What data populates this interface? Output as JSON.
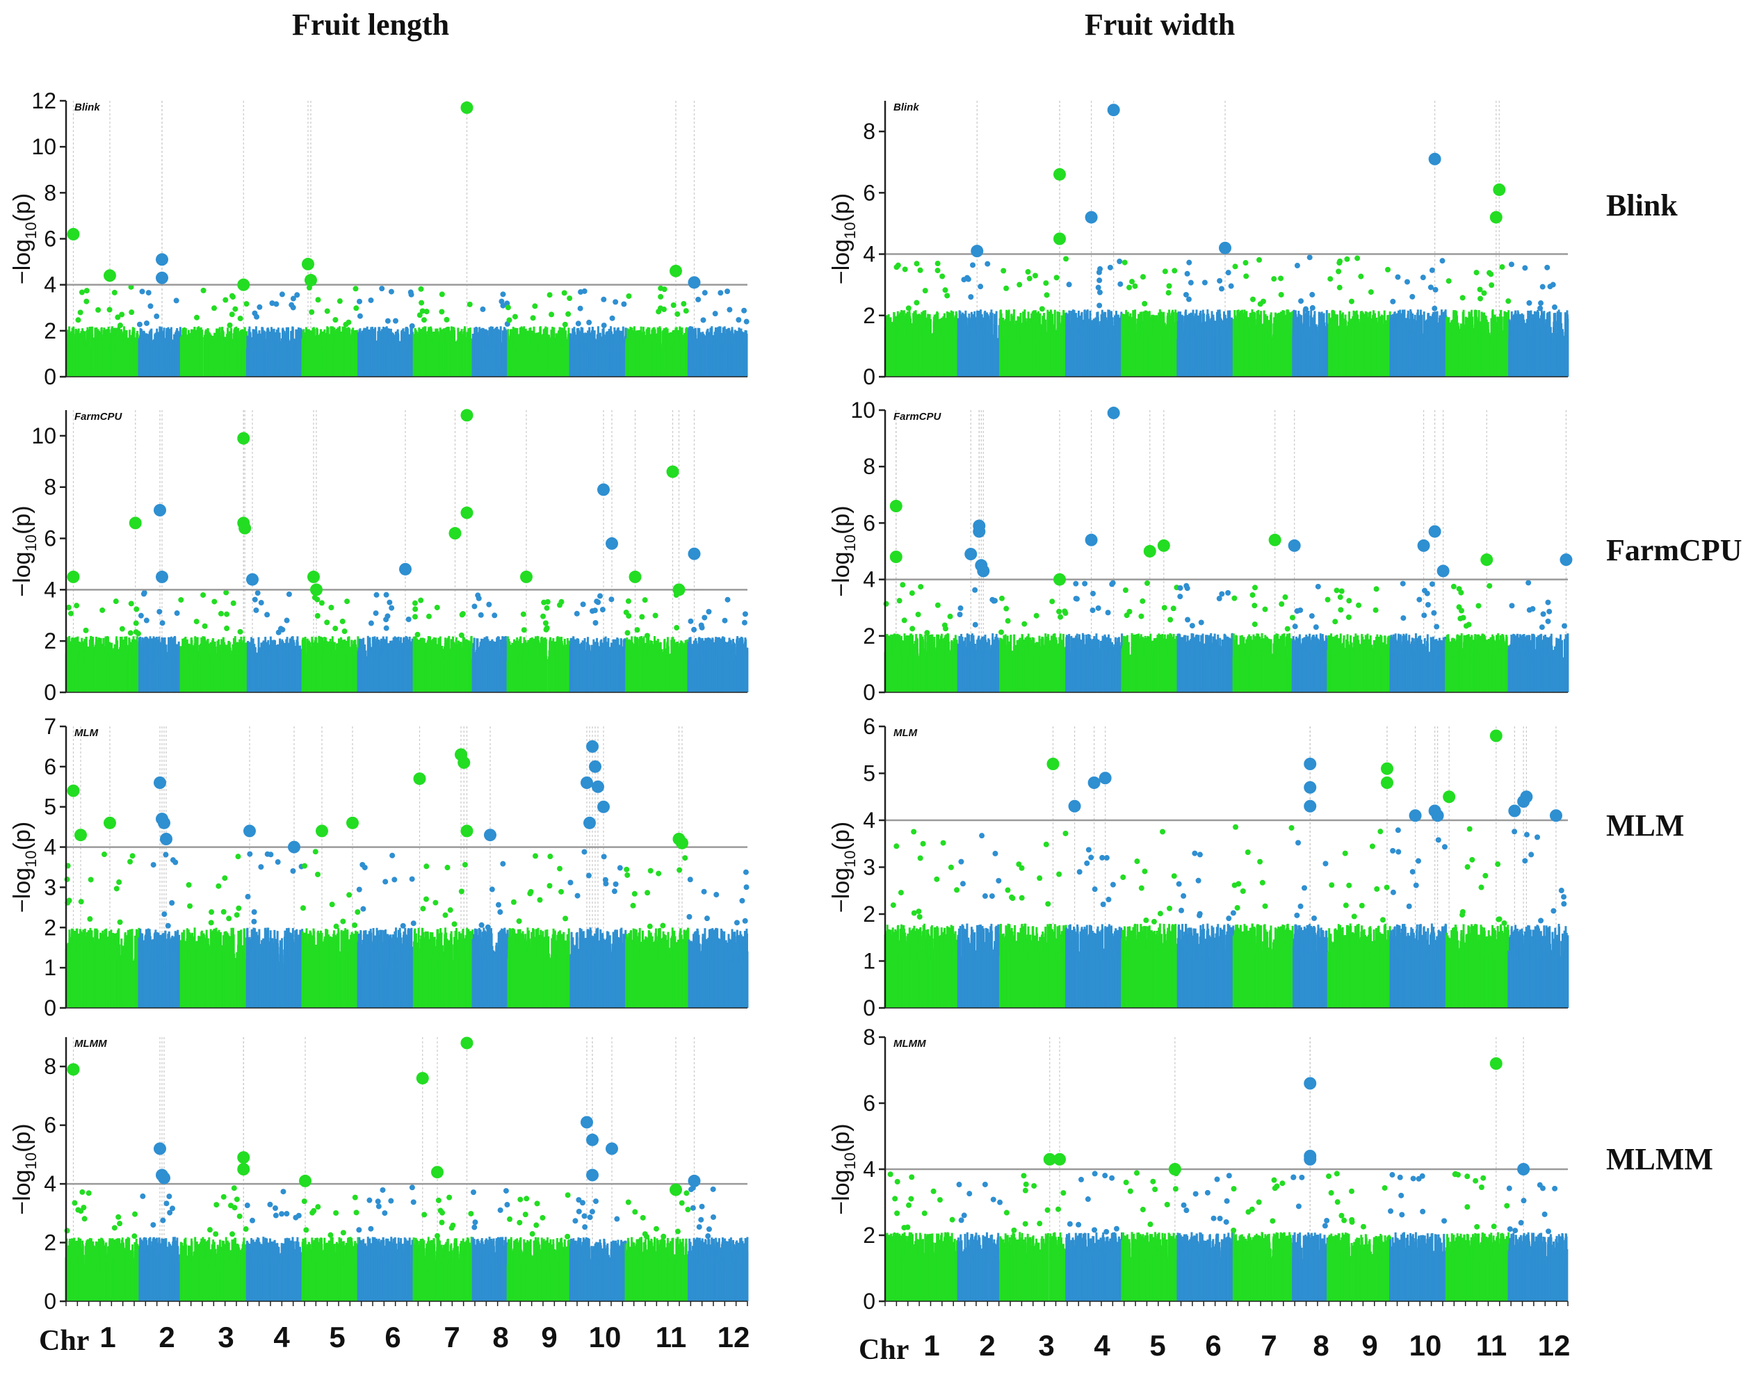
{
  "columns": [
    {
      "title": "Fruit length"
    },
    {
      "title": "Fruit width"
    }
  ],
  "row_labels": [
    "Blink",
    "FarmCPU",
    "MLM",
    "MLMM"
  ],
  "y_axis_label": {
    "main": "−log",
    "sub": "10",
    "tail": "(p)"
  },
  "x_axis": {
    "left": {
      "prefix": "Chr",
      "chromosomes": [
        "1",
        "2",
        "3",
        "4",
        "5",
        "6",
        "7",
        "8",
        "9",
        "10",
        "11",
        "12"
      ]
    },
    "right": {
      "prefix": "Chr",
      "chromosomes": [
        "1",
        "2",
        "3",
        "4",
        "5",
        "6",
        "7",
        "8",
        "9",
        "10",
        "11",
        "12"
      ]
    }
  },
  "colors": {
    "green": "#22dd22",
    "blue": "#2e8fd1",
    "threshold": "#9a9a9a",
    "grid": "#c8c8c8"
  },
  "chart_data": [
    {
      "type": "scatter",
      "trait": "Fruit length",
      "model": "Blink",
      "ylim": [
        0,
        12
      ],
      "yticks": [
        0,
        2,
        4,
        6,
        8,
        10,
        12
      ],
      "threshold": 4,
      "baseline": 2.2,
      "significant_points": [
        {
          "chr": 1,
          "pos": 0.1,
          "y": 6.2
        },
        {
          "chr": 1,
          "pos": 0.6,
          "y": 4.4
        },
        {
          "chr": 2,
          "pos": 0.55,
          "y": 5.1
        },
        {
          "chr": 2,
          "pos": 0.55,
          "y": 4.3
        },
        {
          "chr": 3,
          "pos": 0.95,
          "y": 4.0
        },
        {
          "chr": 5,
          "pos": 0.1,
          "y": 4.9
        },
        {
          "chr": 5,
          "pos": 0.15,
          "y": 4.2
        },
        {
          "chr": 7,
          "pos": 0.9,
          "y": 11.7
        },
        {
          "chr": 11,
          "pos": 0.8,
          "y": 4.6
        },
        {
          "chr": 12,
          "pos": 0.1,
          "y": 4.1
        }
      ]
    },
    {
      "type": "scatter",
      "trait": "Fruit length",
      "model": "FarmCPU",
      "ylim": [
        0,
        11
      ],
      "yticks": [
        0,
        2,
        4,
        6,
        8,
        10
      ],
      "threshold": 4,
      "baseline": 2.2,
      "significant_points": [
        {
          "chr": 1,
          "pos": 0.1,
          "y": 4.5
        },
        {
          "chr": 1,
          "pos": 0.95,
          "y": 6.6
        },
        {
          "chr": 2,
          "pos": 0.5,
          "y": 7.1
        },
        {
          "chr": 2,
          "pos": 0.55,
          "y": 4.5
        },
        {
          "chr": 3,
          "pos": 0.95,
          "y": 9.9
        },
        {
          "chr": 3,
          "pos": 0.95,
          "y": 6.6
        },
        {
          "chr": 3,
          "pos": 0.97,
          "y": 6.4
        },
        {
          "chr": 4,
          "pos": 0.1,
          "y": 4.4
        },
        {
          "chr": 5,
          "pos": 0.2,
          "y": 4.5
        },
        {
          "chr": 5,
          "pos": 0.25,
          "y": 4.0
        },
        {
          "chr": 6,
          "pos": 0.85,
          "y": 4.8
        },
        {
          "chr": 7,
          "pos": 0.7,
          "y": 6.2
        },
        {
          "chr": 7,
          "pos": 0.9,
          "y": 10.8
        },
        {
          "chr": 7,
          "pos": 0.9,
          "y": 7.0
        },
        {
          "chr": 9,
          "pos": 0.3,
          "y": 4.5
        },
        {
          "chr": 10,
          "pos": 0.6,
          "y": 7.9
        },
        {
          "chr": 10,
          "pos": 0.75,
          "y": 5.8
        },
        {
          "chr": 11,
          "pos": 0.15,
          "y": 4.5
        },
        {
          "chr": 11,
          "pos": 0.75,
          "y": 8.6
        },
        {
          "chr": 11,
          "pos": 0.85,
          "y": 4.0
        },
        {
          "chr": 12,
          "pos": 0.1,
          "y": 5.4
        }
      ]
    },
    {
      "type": "scatter",
      "trait": "Fruit length",
      "model": "MLM",
      "ylim": [
        0,
        7
      ],
      "yticks": [
        0,
        1,
        2,
        3,
        4,
        5,
        6,
        7
      ],
      "threshold": 4,
      "baseline": 2.0,
      "significant_points": [
        {
          "chr": 1,
          "pos": 0.1,
          "y": 5.4
        },
        {
          "chr": 1,
          "pos": 0.2,
          "y": 4.3
        },
        {
          "chr": 1,
          "pos": 0.6,
          "y": 4.6
        },
        {
          "chr": 2,
          "pos": 0.5,
          "y": 5.6
        },
        {
          "chr": 2,
          "pos": 0.55,
          "y": 4.7
        },
        {
          "chr": 2,
          "pos": 0.6,
          "y": 4.6
        },
        {
          "chr": 2,
          "pos": 0.65,
          "y": 4.2
        },
        {
          "chr": 4,
          "pos": 0.05,
          "y": 4.4
        },
        {
          "chr": 4,
          "pos": 0.85,
          "y": 4.0
        },
        {
          "chr": 5,
          "pos": 0.35,
          "y": 4.4
        },
        {
          "chr": 5,
          "pos": 0.9,
          "y": 4.6
        },
        {
          "chr": 7,
          "pos": 0.1,
          "y": 5.7
        },
        {
          "chr": 7,
          "pos": 0.8,
          "y": 6.3
        },
        {
          "chr": 7,
          "pos": 0.85,
          "y": 6.1
        },
        {
          "chr": 7,
          "pos": 0.9,
          "y": 4.4
        },
        {
          "chr": 8,
          "pos": 0.5,
          "y": 4.3
        },
        {
          "chr": 10,
          "pos": 0.3,
          "y": 5.6
        },
        {
          "chr": 10,
          "pos": 0.4,
          "y": 6.5
        },
        {
          "chr": 10,
          "pos": 0.45,
          "y": 6.0
        },
        {
          "chr": 10,
          "pos": 0.5,
          "y": 5.5
        },
        {
          "chr": 10,
          "pos": 0.6,
          "y": 5.0
        },
        {
          "chr": 10,
          "pos": 0.35,
          "y": 4.6
        },
        {
          "chr": 11,
          "pos": 0.85,
          "y": 4.2
        },
        {
          "chr": 11,
          "pos": 0.9,
          "y": 4.1
        }
      ]
    },
    {
      "type": "scatter",
      "trait": "Fruit length",
      "model": "MLMM",
      "ylim": [
        0,
        9
      ],
      "yticks": [
        0,
        2,
        4,
        6,
        8
      ],
      "threshold": 4,
      "baseline": 2.2,
      "significant_points": [
        {
          "chr": 1,
          "pos": 0.1,
          "y": 7.9
        },
        {
          "chr": 2,
          "pos": 0.5,
          "y": 5.2
        },
        {
          "chr": 2,
          "pos": 0.55,
          "y": 4.3
        },
        {
          "chr": 2,
          "pos": 0.6,
          "y": 4.2
        },
        {
          "chr": 3,
          "pos": 0.95,
          "y": 4.9
        },
        {
          "chr": 3,
          "pos": 0.95,
          "y": 4.5
        },
        {
          "chr": 5,
          "pos": 0.05,
          "y": 4.1
        },
        {
          "chr": 7,
          "pos": 0.15,
          "y": 7.6
        },
        {
          "chr": 7,
          "pos": 0.4,
          "y": 4.4
        },
        {
          "chr": 7,
          "pos": 0.9,
          "y": 8.8
        },
        {
          "chr": 10,
          "pos": 0.3,
          "y": 6.1
        },
        {
          "chr": 10,
          "pos": 0.4,
          "y": 5.5
        },
        {
          "chr": 10,
          "pos": 0.4,
          "y": 4.3
        },
        {
          "chr": 10,
          "pos": 0.75,
          "y": 5.2
        },
        {
          "chr": 11,
          "pos": 0.8,
          "y": 3.8
        },
        {
          "chr": 12,
          "pos": 0.1,
          "y": 4.1
        }
      ]
    },
    {
      "type": "scatter",
      "trait": "Fruit width",
      "model": "Blink",
      "ylim": [
        0,
        9
      ],
      "yticks": [
        0,
        2,
        4,
        6,
        8
      ],
      "threshold": 4,
      "baseline": 2.2,
      "significant_points": [
        {
          "chr": 2,
          "pos": 0.45,
          "y": 4.1
        },
        {
          "chr": 3,
          "pos": 0.9,
          "y": 6.6
        },
        {
          "chr": 3,
          "pos": 0.9,
          "y": 4.5
        },
        {
          "chr": 4,
          "pos": 0.45,
          "y": 5.2
        },
        {
          "chr": 4,
          "pos": 0.85,
          "y": 8.7
        },
        {
          "chr": 6,
          "pos": 0.85,
          "y": 4.2
        },
        {
          "chr": 10,
          "pos": 0.8,
          "y": 7.1
        },
        {
          "chr": 11,
          "pos": 0.85,
          "y": 6.1
        },
        {
          "chr": 11,
          "pos": 0.8,
          "y": 5.2
        }
      ]
    },
    {
      "type": "scatter",
      "trait": "Fruit width",
      "model": "FarmCPU",
      "ylim": [
        0,
        10
      ],
      "yticks": [
        0,
        2,
        4,
        6,
        8,
        10
      ],
      "threshold": 4,
      "baseline": 2.1,
      "significant_points": [
        {
          "chr": 1,
          "pos": 0.15,
          "y": 6.6
        },
        {
          "chr": 1,
          "pos": 0.15,
          "y": 4.8
        },
        {
          "chr": 2,
          "pos": 0.3,
          "y": 4.9
        },
        {
          "chr": 2,
          "pos": 0.5,
          "y": 5.7
        },
        {
          "chr": 2,
          "pos": 0.5,
          "y": 5.9
        },
        {
          "chr": 2,
          "pos": 0.55,
          "y": 4.5
        },
        {
          "chr": 2,
          "pos": 0.6,
          "y": 4.3
        },
        {
          "chr": 3,
          "pos": 0.9,
          "y": 4.0
        },
        {
          "chr": 4,
          "pos": 0.45,
          "y": 5.4
        },
        {
          "chr": 4,
          "pos": 0.85,
          "y": 9.9
        },
        {
          "chr": 5,
          "pos": 0.5,
          "y": 5.0
        },
        {
          "chr": 5,
          "pos": 0.75,
          "y": 5.2
        },
        {
          "chr": 7,
          "pos": 0.7,
          "y": 5.4
        },
        {
          "chr": 8,
          "pos": 0.05,
          "y": 5.2
        },
        {
          "chr": 10,
          "pos": 0.6,
          "y": 5.2
        },
        {
          "chr": 10,
          "pos": 0.8,
          "y": 5.7
        },
        {
          "chr": 10,
          "pos": 0.95,
          "y": 4.3
        },
        {
          "chr": 11,
          "pos": 0.65,
          "y": 4.7
        },
        {
          "chr": 12,
          "pos": 0.97,
          "y": 4.7
        }
      ]
    },
    {
      "type": "scatter",
      "trait": "Fruit width",
      "model": "MLM",
      "ylim": [
        0,
        6
      ],
      "yticks": [
        0,
        1,
        2,
        3,
        4,
        5,
        6
      ],
      "threshold": 4,
      "baseline": 1.8,
      "significant_points": [
        {
          "chr": 3,
          "pos": 0.8,
          "y": 5.2
        },
        {
          "chr": 4,
          "pos": 0.15,
          "y": 4.3
        },
        {
          "chr": 4,
          "pos": 0.5,
          "y": 4.8
        },
        {
          "chr": 4,
          "pos": 0.7,
          "y": 4.9
        },
        {
          "chr": 8,
          "pos": 0.5,
          "y": 5.2
        },
        {
          "chr": 8,
          "pos": 0.5,
          "y": 4.7
        },
        {
          "chr": 8,
          "pos": 0.5,
          "y": 4.3
        },
        {
          "chr": 9,
          "pos": 0.95,
          "y": 5.1
        },
        {
          "chr": 9,
          "pos": 0.95,
          "y": 4.8
        },
        {
          "chr": 10,
          "pos": 0.45,
          "y": 4.1
        },
        {
          "chr": 10,
          "pos": 0.8,
          "y": 4.2
        },
        {
          "chr": 10,
          "pos": 0.85,
          "y": 4.1
        },
        {
          "chr": 11,
          "pos": 0.05,
          "y": 4.5
        },
        {
          "chr": 11,
          "pos": 0.8,
          "y": 5.8
        },
        {
          "chr": 12,
          "pos": 0.1,
          "y": 4.2
        },
        {
          "chr": 12,
          "pos": 0.25,
          "y": 4.4
        },
        {
          "chr": 12,
          "pos": 0.3,
          "y": 4.5
        },
        {
          "chr": 12,
          "pos": 0.8,
          "y": 4.1
        }
      ]
    },
    {
      "type": "scatter",
      "trait": "Fruit width",
      "model": "MLMM",
      "ylim": [
        0,
        8
      ],
      "yticks": [
        0,
        2,
        4,
        6,
        8
      ],
      "threshold": 4,
      "baseline": 2.1,
      "significant_points": [
        {
          "chr": 3,
          "pos": 0.75,
          "y": 4.3
        },
        {
          "chr": 3,
          "pos": 0.9,
          "y": 4.3
        },
        {
          "chr": 5,
          "pos": 0.95,
          "y": 4.0
        },
        {
          "chr": 8,
          "pos": 0.5,
          "y": 6.6
        },
        {
          "chr": 8,
          "pos": 0.5,
          "y": 4.4
        },
        {
          "chr": 8,
          "pos": 0.5,
          "y": 4.3
        },
        {
          "chr": 11,
          "pos": 0.8,
          "y": 7.2
        },
        {
          "chr": 12,
          "pos": 0.25,
          "y": 4.0
        }
      ]
    }
  ]
}
